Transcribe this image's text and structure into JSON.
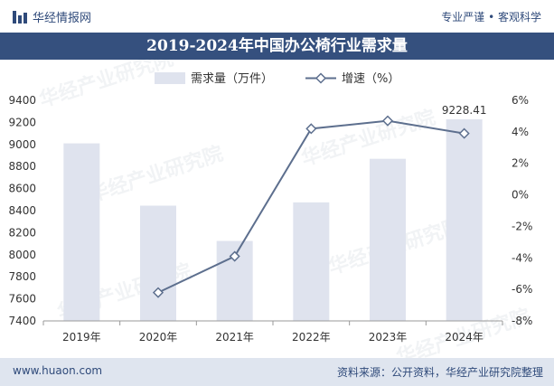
{
  "header": {
    "brand": "华经情报网",
    "tagline": "专业严谨 • 客观科学"
  },
  "title": "2019-2024年中国办公椅行业需求量",
  "footer": {
    "url": "www.huaon.com",
    "source": "资料来源：公开资料，华经产业研究院整理"
  },
  "watermarks": [
    "华经产业研究院",
    "www.huaon.com"
  ],
  "colors": {
    "bar": "#dfe3ee",
    "line": "#5d6f8e",
    "title_bg": "#35507e",
    "footer_bg": "#dfe5ef"
  },
  "chart_data": {
    "type": "bar+line",
    "categories": [
      "2019年",
      "2020年",
      "2021年",
      "2022年",
      "2023年",
      "2024年"
    ],
    "series": [
      {
        "name": "需求量（万件）",
        "type": "bar",
        "axis": "left",
        "values": [
          9010,
          8445,
          8125,
          8475,
          8870,
          9228.41
        ]
      },
      {
        "name": "增速（%）",
        "type": "line",
        "axis": "right",
        "values": [
          null,
          -6.2,
          -3.9,
          4.2,
          4.7,
          3.9
        ]
      }
    ],
    "data_labels": [
      {
        "series": 0,
        "index": 5,
        "text": "9228.41"
      }
    ],
    "y_left": {
      "min": 7400,
      "max": 9400,
      "ticks": [
        "7400",
        "7600",
        "7800",
        "8000",
        "8200",
        "8400",
        "8600",
        "8800",
        "9000",
        "9200",
        "9400"
      ]
    },
    "y_right": {
      "min": -8,
      "max": 6,
      "ticks": [
        "-8%",
        "-6%",
        "-4%",
        "-2%",
        "0%",
        "2%",
        "4%",
        "6%"
      ]
    },
    "legend_position": "top-center",
    "grid": false
  }
}
